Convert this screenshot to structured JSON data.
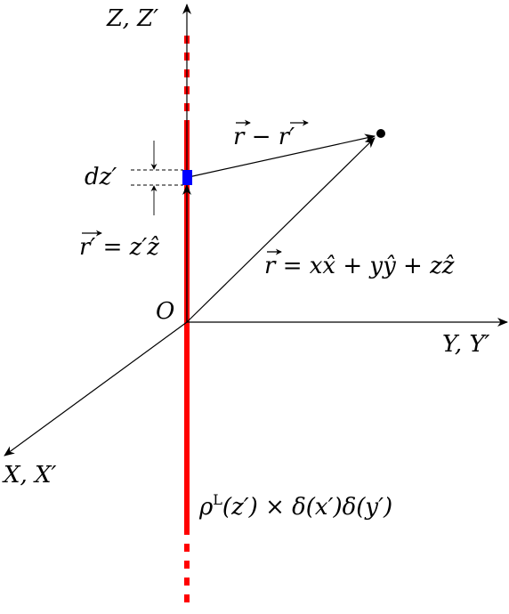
{
  "colors": {
    "line_charge": "#ff0000",
    "element": "#0000ff",
    "axes": "#000000",
    "background": "#ffffff"
  },
  "labels": {
    "z_axis": "Z, Z′",
    "y_axis": "Y, Y′",
    "x_axis": "X, X′",
    "origin": "O",
    "dz": "dz′",
    "r_prime_lhs": "r′",
    "r_prime_rhs": " = z′ẑ",
    "r_minus_a": "r",
    "r_minus_op": " − ",
    "r_minus_b": "r′",
    "r_vec_lhs": "r",
    "r_vec_rhs": " = xx̂ + yŷ + zẑ",
    "density_rho": "ρ",
    "density_sup": "L",
    "density_rest": "(z′) × δ(x′)δ(y′)"
  },
  "icons": {
    "arrowhead": "arrowhead-icon",
    "vector_arrow": "vector-arrow-icon",
    "point": "point-icon"
  }
}
